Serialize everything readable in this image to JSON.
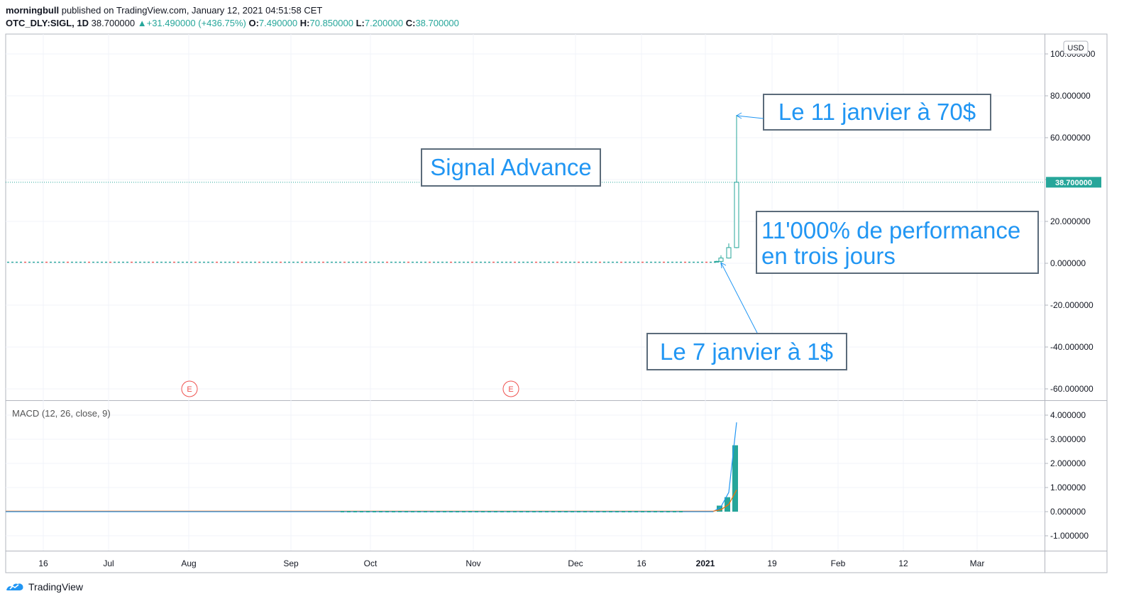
{
  "header": {
    "author": "morningbull",
    "published": " published on TradingView.com, January 12, 2021 04:51:58 CET",
    "symbol": "OTC_DLY:SIGL, 1D",
    "last": "38.700000",
    "change": "+31.490000 (+436.75%)",
    "o_label": "O:",
    "o": "7.490000",
    "h_label": "H:",
    "h": "70.850000",
    "l_label": "L:",
    "l": "7.200000",
    "c_label": "C:",
    "c": "38.700000"
  },
  "currency": "USD",
  "price_axis_labels": [
    "100.000000",
    "80.000000",
    "60.000000",
    "20.000000",
    "0.000000",
    "-20.000000",
    "-40.000000",
    "-60.000000"
  ],
  "last_price_label": "38.700000",
  "macd": {
    "label": "MACD (12, 26, close, 9)",
    "axis_labels": [
      "4.000000",
      "3.000000",
      "2.000000",
      "1.000000",
      "0.000000",
      "-1.000000"
    ]
  },
  "time_axis_labels": [
    "16",
    "Jul",
    "Aug",
    "Sep",
    "Oct",
    "Nov",
    "Dec",
    "16",
    "2021",
    "19",
    "Feb",
    "12",
    "Mar"
  ],
  "earnings_marker": "E",
  "annotations": {
    "title": "Signal Advance",
    "jan11": "Le 11 janvier à 70$",
    "jan7": "Le 7 janvier à 1$",
    "perf_line1": "11'000% de performance",
    "perf_line2": "en trois jours"
  },
  "footer": {
    "brand": "TradingView"
  },
  "colors": {
    "up": "#26a69a",
    "down": "#ef5350",
    "annotation": "#2196f3",
    "box_border": "#4a5a6a",
    "macd_line": "#2196f3",
    "signal_line": "#ff6d00"
  },
  "chart_data": {
    "type": "candlestick",
    "symbol": "OTC_DLY:SIGL",
    "interval": "1D",
    "price_range": [
      -65,
      105
    ],
    "macd_range": [
      -1.5,
      4.3
    ],
    "flat_series_value": 0.5,
    "candles": [
      {
        "date": "2021-01-06",
        "open": 0.6,
        "high": 1.2,
        "low": 0.5,
        "close": 0.9
      },
      {
        "date": "2021-01-07",
        "open": 0.9,
        "high": 3.8,
        "low": -0.5,
        "close": 2.5
      },
      {
        "date": "2021-01-08",
        "open": 2.5,
        "high": 9.5,
        "low": 2.3,
        "close": 7.49
      },
      {
        "date": "2021-01-11",
        "open": 7.49,
        "high": 70.85,
        "low": 7.2,
        "close": 38.7
      }
    ],
    "macd_histogram": [
      {
        "date": "2021-01-07",
        "value": 0.25
      },
      {
        "date": "2021-01-08",
        "value": 0.6
      },
      {
        "date": "2021-01-11",
        "value": 2.75
      }
    ],
    "macd_line_end": 3.7,
    "signal_line_end": 0.9
  }
}
